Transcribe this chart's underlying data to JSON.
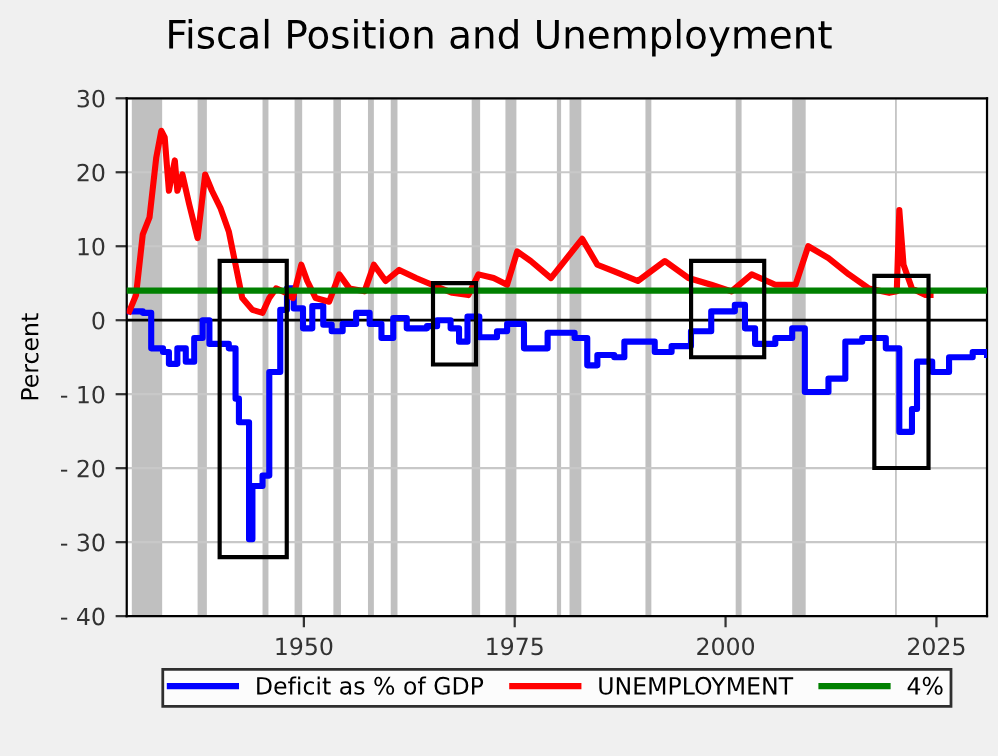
{
  "chart_data": {
    "type": "line",
    "title": "Fiscal Position and Unemployment",
    "ylabel": "Percent",
    "xlim": [
      1929,
      2031
    ],
    "xticks": [
      1950,
      1975,
      2000,
      2025
    ],
    "ylim": [
      -40,
      30
    ],
    "yticks": [
      {
        "value": -40,
        "label": "- 40"
      },
      {
        "value": -30,
        "label": "- 30"
      },
      {
        "value": -20,
        "label": "- 20"
      },
      {
        "value": -10,
        "label": "- 10"
      },
      0,
      10,
      20,
      30
    ],
    "grid": "y",
    "legend": "bottom",
    "series": [
      {
        "name": "Deficit as % of GDP",
        "type": "step",
        "color": "#0000ff",
        "x": [
          1929.3,
          1930.9,
          1931.9,
          1933.3,
          1934,
          1935,
          1936,
          1937,
          1938,
          1938.8,
          1940.4,
          1941.1,
          1941.9,
          1942.3,
          1943.1,
          1943.5,
          1943.9,
          1945.1,
          1945.9,
          1946.9,
          1947.2,
          1948,
          1948.8,
          1949.9,
          1951,
          1952.3,
          1953.3,
          1954.6,
          1956.2,
          1957.8,
          1959.2,
          1960.6,
          1962.2,
          1964.6,
          1965.8,
          1967.4,
          1968.4,
          1969.4,
          1970.8,
          1972.9,
          1974.1,
          1976.1,
          1978.9,
          1982.1,
          1983.6,
          1984.8,
          1986.8,
          1988,
          1990.4,
          1991.6,
          1993.6,
          1995.9,
          1998.3,
          2001.1,
          2002.3,
          2003.5,
          2005.9,
          2007.9,
          2009.4,
          2012.2,
          2014.2,
          2016.2,
          2019,
          2020.6,
          2022.1,
          2022.7,
          2024.5,
          2026.5,
          2029.3,
          2031
        ],
        "values": [
          1.2,
          1,
          -3.8,
          -4.3,
          -5.9,
          -3.8,
          -5.6,
          -2.4,
          0,
          -3.2,
          -3.2,
          -3.8,
          -10.6,
          -13.8,
          -13.8,
          -29.6,
          -22.4,
          -21,
          -7,
          -7,
          1.4,
          4.3,
          1.6,
          -1.1,
          1.9,
          -0.6,
          -1.5,
          -0.5,
          1,
          -0.5,
          -2.4,
          0.3,
          -1.1,
          -0.8,
          0,
          -1.1,
          -2.9,
          0.5,
          -2.3,
          -1.5,
          -0.5,
          -3.8,
          -1.7,
          -2.4,
          -6.1,
          -4.7,
          -5,
          -2.9,
          -2.9,
          -4.3,
          -3.5,
          -1.5,
          1.2,
          2.1,
          -1.1,
          -3.2,
          -2.4,
          -1.1,
          -9.7,
          -7.9,
          -2.9,
          -2.4,
          -3.8,
          -15.1,
          -12,
          -5.6,
          -7,
          -5,
          -4.3,
          -4.7
        ]
      },
      {
        "name": "UNEMPLOYMENT",
        "color": "#ff0000",
        "x": [
          1929.3,
          1930.1,
          1930.9,
          1931.7,
          1932.5,
          1933.1,
          1933.5,
          1934,
          1934.7,
          1935,
          1935.6,
          1936.4,
          1937.4,
          1938.3,
          1939.1,
          1940.1,
          1941.1,
          1941.9,
          1942.7,
          1943.9,
          1945.1,
          1945.9,
          1946.7,
          1947.9,
          1948.7,
          1949.7,
          1950.4,
          1951.4,
          1953,
          1954.2,
          1955.4,
          1957.2,
          1958.3,
          1959.7,
          1961.3,
          1963.3,
          1965.2,
          1967.6,
          1969.5,
          1970.7,
          1972.5,
          1974.1,
          1975.3,
          1976.9,
          1979.3,
          1980.9,
          1983,
          1984.8,
          1986.8,
          1989.6,
          1992.8,
          1995.6,
          1998.3,
          2000.7,
          2003.1,
          2005.9,
          2008.3,
          2009.8,
          2012.2,
          2014.6,
          2017,
          2019.4,
          2020.3,
          2020.6,
          2021.1,
          2022.1,
          2023.7,
          2024.3
        ],
        "values": [
          1.2,
          3.4,
          11.6,
          13.9,
          22,
          25.6,
          24.7,
          17.5,
          21.6,
          17.5,
          19.7,
          15.7,
          11.1,
          19.7,
          17.5,
          15.2,
          12,
          7.5,
          3,
          1.4,
          1,
          3,
          4.3,
          3.7,
          3,
          7.5,
          5.3,
          3,
          2.5,
          6.2,
          4.3,
          3.9,
          7.5,
          5.3,
          6.8,
          5.7,
          4.8,
          3.7,
          3.4,
          6.2,
          5.7,
          4.8,
          9.3,
          8,
          5.7,
          8,
          11,
          7.5,
          6.6,
          5.3,
          8,
          5.7,
          4.8,
          3.9,
          6.2,
          4.8,
          4.8,
          10,
          8.4,
          6.2,
          4.3,
          3.7,
          3.9,
          14.9,
          7.5,
          4.3,
          3.4,
          3.4
        ]
      },
      {
        "name": "4%",
        "color": "#008000",
        "x": [
          1929,
          2031
        ],
        "values": [
          4,
          4
        ]
      }
    ],
    "ref_lines": [
      {
        "axis": "y",
        "value": 0,
        "color": "#000000"
      }
    ],
    "bands": [
      {
        "axis": "x",
        "from": 1929.6,
        "to": 1933.2,
        "color": "#c0c0c0"
      },
      {
        "axis": "x",
        "from": 1937.4,
        "to": 1938.5,
        "color": "#c0c0c0"
      },
      {
        "axis": "x",
        "from": 1945.1,
        "to": 1945.8,
        "color": "#c0c0c0"
      },
      {
        "axis": "x",
        "from": 1948.9,
        "to": 1949.8,
        "color": "#c0c0c0"
      },
      {
        "axis": "x",
        "from": 1953.5,
        "to": 1954.4,
        "color": "#c0c0c0"
      },
      {
        "axis": "x",
        "from": 1957.6,
        "to": 1958.3,
        "color": "#c0c0c0"
      },
      {
        "axis": "x",
        "from": 1960.3,
        "to": 1961.1,
        "color": "#c0c0c0"
      },
      {
        "axis": "x",
        "from": 1969.9,
        "to": 1970.9,
        "color": "#c0c0c0"
      },
      {
        "axis": "x",
        "from": 1973.9,
        "to": 1975.2,
        "color": "#c0c0c0"
      },
      {
        "axis": "x",
        "from": 1980.0,
        "to": 1980.5,
        "color": "#c0c0c0"
      },
      {
        "axis": "x",
        "from": 1981.5,
        "to": 1982.9,
        "color": "#c0c0c0"
      },
      {
        "axis": "x",
        "from": 1990.5,
        "to": 1991.2,
        "color": "#c0c0c0"
      },
      {
        "axis": "x",
        "from": 2001.2,
        "to": 2001.9,
        "color": "#c0c0c0"
      },
      {
        "axis": "x",
        "from": 2007.9,
        "to": 2009.5,
        "color": "#c0c0c0"
      },
      {
        "axis": "x",
        "from": 2020.1,
        "to": 2020.3,
        "color": "#c0c0c0"
      }
    ]
  }
}
